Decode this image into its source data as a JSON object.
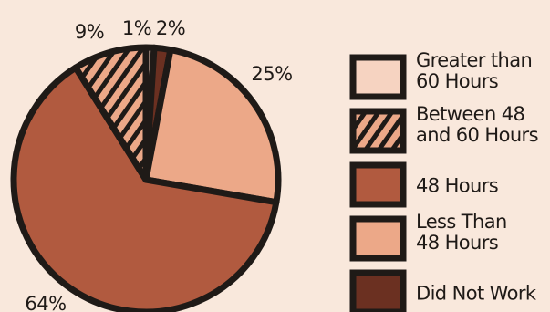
{
  "chart_data": {
    "type": "pie",
    "slices": [
      {
        "label": "Greater than 60 Hours",
        "label_lines": [
          "Greater than",
          "60 Hours"
        ],
        "value": 1,
        "display": "1%",
        "color": "#f6d3c1",
        "pattern": "solid"
      },
      {
        "label": "Did Not Work",
        "label_lines": [
          "Did Not Work"
        ],
        "value": 2,
        "display": "2%",
        "color": "#6b3021",
        "pattern": "solid"
      },
      {
        "label": "Less Than 48 Hours",
        "label_lines": [
          "Less Than",
          "48 Hours"
        ],
        "value": 25,
        "display": "25%",
        "color": "#eca888",
        "pattern": "solid"
      },
      {
        "label": "48 Hours",
        "label_lines": [
          "48 Hours"
        ],
        "value": 64,
        "display": "64%",
        "color": "#b15a3f",
        "pattern": "solid"
      },
      {
        "label": "Between 48 and 60 Hours",
        "label_lines": [
          "Between 48",
          "and 60 Hours"
        ],
        "value": 9,
        "display": "9%",
        "color": "#eca888",
        "pattern": "hatch"
      }
    ],
    "legend_order": [
      "Greater than 60 Hours",
      "Between 48 and 60 Hours",
      "48 Hours",
      "Less Than 48 Hours",
      "Did Not Work"
    ],
    "legend_position": "right",
    "start_angle_deg": 0,
    "direction": "clockwise"
  },
  "colors": {
    "background": "#f9e8dc",
    "outline": "#1f1a17"
  }
}
